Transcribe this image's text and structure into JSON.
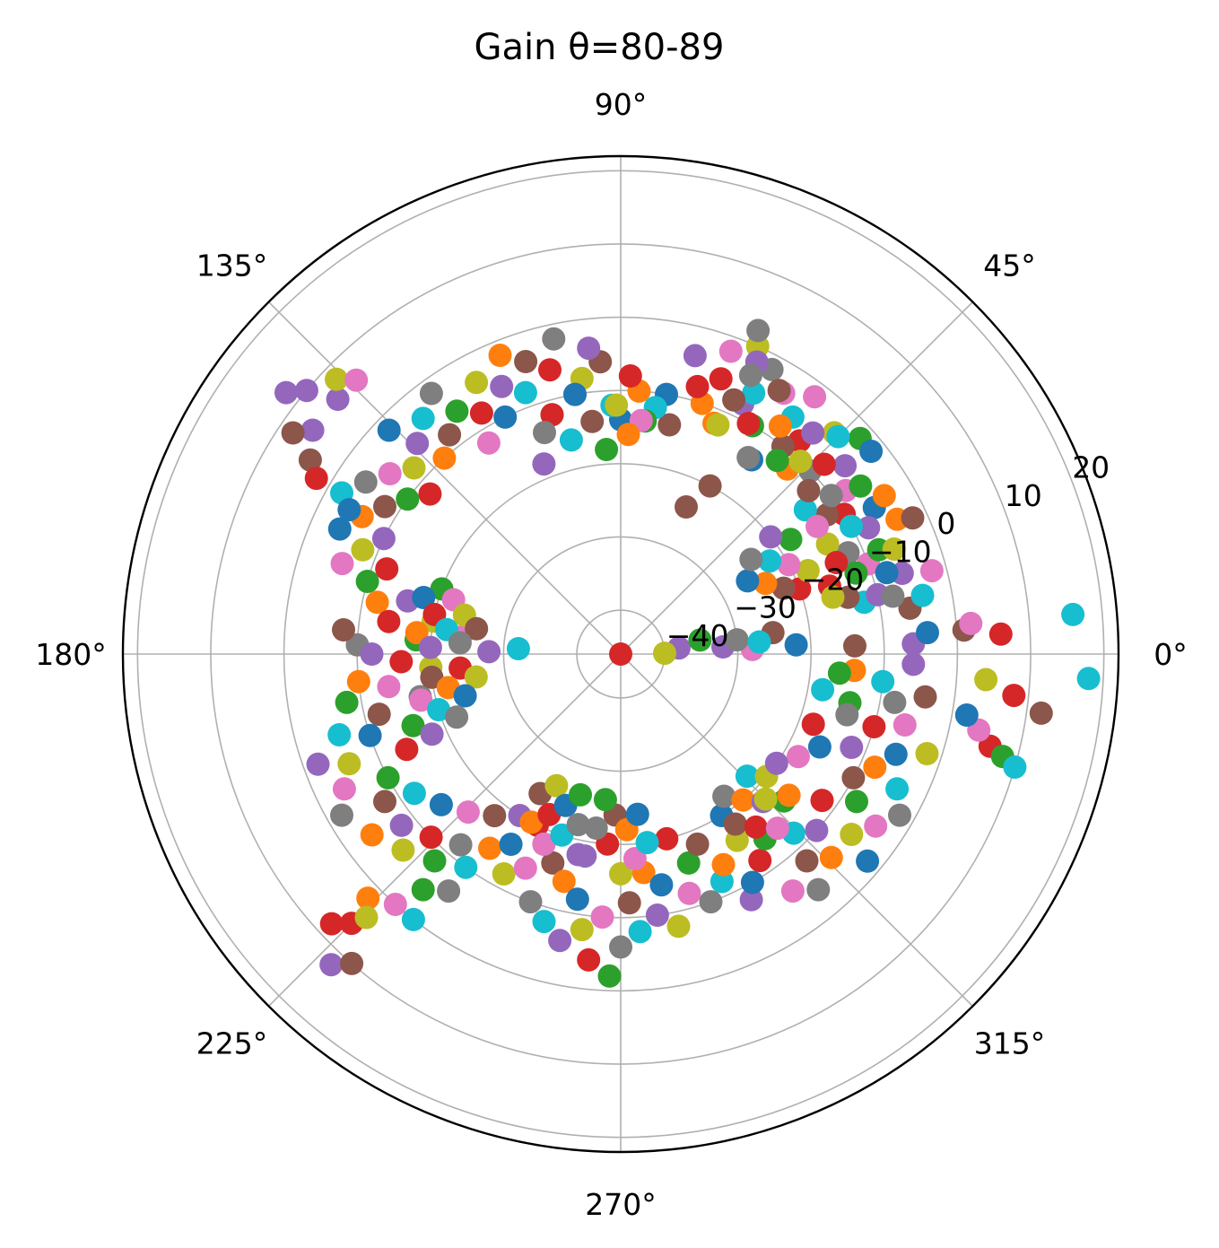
{
  "chart_data": {
    "type": "scatter",
    "projection": "polar",
    "title": "Gain θ=80-89",
    "angle_ticks": [
      "0°",
      "45°",
      "90°",
      "135°",
      "180°",
      "225°",
      "270°",
      "315°"
    ],
    "angle_tick_values_deg": [
      0,
      45,
      90,
      135,
      180,
      225,
      270,
      315
    ],
    "radial_ticks": [
      "−40",
      "−30",
      "−20",
      "−10",
      "0",
      "10",
      "20"
    ],
    "radial_tick_values": [
      -40,
      -30,
      -20,
      -10,
      0,
      10,
      20
    ],
    "rlim": [
      -46,
      22
    ],
    "grid": true,
    "legend": "none",
    "colors": [
      "#1f77b4",
      "#ff7f0e",
      "#2ca02c",
      "#d62728",
      "#9467bd",
      "#8c564b",
      "#e377c2",
      "#7f7f7f",
      "#bcbd22",
      "#17becf"
    ],
    "series_description": "approx. 600 points over many colored series; angles in degrees, radius (gain) in dB",
    "points": [
      [
        0,
        -46,
        3
      ],
      [
        4,
        -32,
        4
      ],
      [
        8,
        -25,
        5
      ],
      [
        2,
        -28,
        6
      ],
      [
        6,
        -38,
        4
      ],
      [
        10,
        -35,
        2
      ],
      [
        3,
        -22,
        0
      ],
      [
        7,
        -30,
        7
      ],
      [
        1,
        -40,
        8
      ],
      [
        5,
        -27,
        9
      ],
      [
        12,
        -12,
        9
      ],
      [
        14,
        -14,
        5
      ],
      [
        16,
        -6,
        4
      ],
      [
        18,
        -16,
        3
      ],
      [
        20,
        -10,
        6
      ],
      [
        22,
        -8,
        2
      ],
      [
        24,
        -12,
        7
      ],
      [
        26,
        -4,
        1
      ],
      [
        28,
        -14,
        8
      ],
      [
        30,
        -6,
        0
      ],
      [
        32,
        -10,
        3
      ],
      [
        34,
        -12,
        5
      ],
      [
        36,
        -8,
        6
      ],
      [
        38,
        -14,
        9
      ],
      [
        40,
        -6,
        4
      ],
      [
        42,
        -2,
        2
      ],
      [
        44,
        -10,
        7
      ],
      [
        46,
        -4,
        8
      ],
      [
        48,
        -12,
        1
      ],
      [
        50,
        -8,
        3
      ],
      [
        52,
        -10,
        5
      ],
      [
        54,
        -6,
        9
      ],
      [
        56,
        -14,
        0
      ],
      [
        58,
        -4,
        6
      ],
      [
        60,
        -10,
        2
      ],
      [
        62,
        -2,
        7
      ],
      [
        64,
        -8,
        4
      ],
      [
        66,
        0,
        8
      ],
      [
        68,
        -12,
        1
      ],
      [
        70,
        -6,
        3
      ],
      [
        9,
        -6,
        5
      ],
      [
        11,
        -4,
        9
      ],
      [
        13,
        -10,
        4
      ],
      [
        15,
        -2,
        6
      ],
      [
        17,
        -8,
        0
      ],
      [
        19,
        -12,
        2
      ],
      [
        21,
        -6,
        8
      ],
      [
        23,
        -14,
        3
      ],
      [
        25,
        -2,
        5
      ],
      [
        27,
        -8,
        4
      ],
      [
        29,
        -10,
        9
      ],
      [
        31,
        -4,
        1
      ],
      [
        33,
        -14,
        6
      ],
      [
        35,
        -6,
        2
      ],
      [
        37,
        -10,
        7
      ],
      [
        39,
        -2,
        0
      ],
      [
        41,
        -12,
        5
      ],
      [
        43,
        -8,
        3
      ],
      [
        45,
        -4,
        9
      ],
      [
        47,
        -10,
        8
      ],
      [
        49,
        -6,
        4
      ],
      [
        51,
        -12,
        2
      ],
      [
        53,
        -2,
        6
      ],
      [
        55,
        -8,
        1
      ],
      [
        57,
        -14,
        7
      ],
      [
        59,
        -4,
        5
      ],
      [
        61,
        -10,
        3
      ],
      [
        63,
        -6,
        9
      ],
      [
        65,
        -2,
        4
      ],
      [
        67,
        -12,
        8
      ],
      [
        3,
        6,
        3
      ],
      [
        4,
        1,
        5
      ],
      [
        2,
        -6,
        4
      ],
      [
        5,
        2,
        6
      ],
      [
        4,
        -4,
        0
      ],
      [
        15,
        -16,
        8
      ],
      [
        12,
        -8,
        7
      ],
      [
        66,
        -8,
        5
      ],
      [
        62,
        -20,
        5
      ],
      [
        65,
        -4,
        7
      ],
      [
        67,
        2,
        7
      ],
      [
        66,
        -24,
        5
      ],
      [
        70,
        -2,
        6
      ],
      [
        72,
        -10,
        1
      ],
      [
        74,
        -8,
        3
      ],
      [
        76,
        -4,
        4
      ],
      [
        78,
        -14,
        5
      ],
      [
        80,
        -10,
        0
      ],
      [
        82,
        -12,
        9
      ],
      [
        84,
        -14,
        2
      ],
      [
        86,
        -10,
        1
      ],
      [
        88,
        -8,
        3
      ],
      [
        90,
        -14,
        0
      ],
      [
        92,
        -12,
        9
      ],
      [
        94,
        -6,
        5
      ],
      [
        96,
        -4,
        4
      ],
      [
        98,
        -8,
        8
      ],
      [
        100,
        -10,
        6
      ],
      [
        102,
        -2,
        7
      ],
      [
        104,
        -6,
        3
      ],
      [
        106,
        -12,
        2
      ],
      [
        108,
        -4,
        5
      ],
      [
        110,
        -8,
        9
      ],
      [
        112,
        -2,
        1
      ],
      [
        114,
        -6,
        4
      ],
      [
        116,
        -10,
        0
      ],
      [
        118,
        -4,
        8
      ],
      [
        120,
        -8,
        3
      ],
      [
        122,
        -12,
        6
      ],
      [
        124,
        -6,
        2
      ],
      [
        126,
        -2,
        7
      ],
      [
        128,
        -8,
        5
      ],
      [
        130,
        -4,
        9
      ],
      [
        132,
        -10,
        1
      ],
      [
        134,
        -6,
        4
      ],
      [
        136,
        -2,
        0
      ],
      [
        138,
        -8,
        8
      ],
      [
        140,
        -12,
        3
      ],
      [
        142,
        -6,
        6
      ],
      [
        144,
        -10,
        2
      ],
      [
        146,
        -4,
        7
      ],
      [
        148,
        -8,
        5
      ],
      [
        150,
        -2,
        9
      ],
      [
        152,
        -6,
        1
      ],
      [
        154,
        -10,
        4
      ],
      [
        156,
        -4,
        0
      ],
      [
        158,
        -8,
        8
      ],
      [
        160,
        -12,
        3
      ],
      [
        162,
        -6,
        6
      ],
      [
        164,
        -10,
        2
      ],
      [
        140,
        10,
        4
      ],
      [
        142,
        12,
        4
      ],
      [
        144,
        6,
        4
      ],
      [
        146,
        8,
        5
      ],
      [
        138,
        6,
        4
      ],
      [
        148,
        4,
        5
      ],
      [
        136,
        8,
        8
      ],
      [
        134,
        6,
        6
      ],
      [
        150,
        2,
        3
      ],
      [
        152,
        -4,
        0
      ],
      [
        166,
        -16,
        4
      ],
      [
        168,
        -12,
        1
      ],
      [
        170,
        -20,
        8
      ],
      [
        172,
        -14,
        3
      ],
      [
        174,
        -24,
        6
      ],
      [
        176,
        -18,
        2
      ],
      [
        178,
        -10,
        7
      ],
      [
        179,
        -28,
        4
      ],
      [
        177,
        -32,
        9
      ],
      [
        175,
        -8,
        5
      ],
      [
        180,
        -12,
        4
      ],
      [
        182,
        -16,
        3
      ],
      [
        184,
        -20,
        8
      ],
      [
        186,
        -10,
        1
      ],
      [
        188,
        -14,
        6
      ],
      [
        190,
        -8,
        2
      ],
      [
        192,
        -18,
        7
      ],
      [
        194,
        -12,
        5
      ],
      [
        196,
        -6,
        9
      ],
      [
        198,
        -10,
        0
      ],
      [
        200,
        -2,
        4
      ],
      [
        202,
        -6,
        8
      ],
      [
        204,
        -14,
        3
      ],
      [
        206,
        -4,
        6
      ],
      [
        208,
        -10,
        2
      ],
      [
        210,
        -2,
        7
      ],
      [
        212,
        -8,
        5
      ],
      [
        214,
        -12,
        9
      ],
      [
        216,
        -4,
        1
      ],
      [
        218,
        -8,
        4
      ],
      [
        220,
        -14,
        0
      ],
      [
        222,
        -6,
        8
      ],
      [
        224,
        -10,
        3
      ],
      [
        226,
        -16,
        6
      ],
      [
        228,
        -8,
        2
      ],
      [
        230,
        -12,
        7
      ],
      [
        232,
        -18,
        5
      ],
      [
        234,
        -10,
        9
      ],
      [
        236,
        -14,
        1
      ],
      [
        238,
        -20,
        4
      ],
      [
        240,
        -16,
        0
      ],
      [
        242,
        -12,
        8
      ],
      [
        244,
        -20,
        3
      ],
      [
        246,
        -14,
        6
      ],
      [
        248,
        -18,
        2
      ],
      [
        250,
        -10,
        7
      ],
      [
        252,
        -16,
        5
      ],
      [
        254,
        -8,
        9
      ],
      [
        256,
        -14,
        1
      ],
      [
        258,
        -6,
        4
      ],
      [
        260,
        -12,
        0
      ],
      [
        262,
        -8,
        8
      ],
      [
        264,
        -4,
        3
      ],
      [
        266,
        -10,
        6
      ],
      [
        268,
        -2,
        2
      ],
      [
        270,
        -6,
        7
      ],
      [
        272,
        -12,
        5
      ],
      [
        274,
        -8,
        9
      ],
      [
        276,
        -16,
        1
      ],
      [
        278,
        -10,
        4
      ],
      [
        223,
        8,
        3
      ],
      [
        225,
        6,
        3
      ],
      [
        227,
        12,
        4
      ],
      [
        229,
        10,
        5
      ],
      [
        224,
        2,
        1
      ],
      [
        226,
        4,
        8
      ],
      [
        228,
        0,
        6
      ],
      [
        230,
        -4,
        2
      ],
      [
        232,
        0,
        9
      ],
      [
        234,
        -6,
        7
      ],
      [
        280,
        -14,
        0
      ],
      [
        282,
        -8,
        8
      ],
      [
        284,
        -20,
        3
      ],
      [
        286,
        -12,
        6
      ],
      [
        288,
        -16,
        2
      ],
      [
        290,
        -10,
        7
      ],
      [
        292,
        -18,
        5
      ],
      [
        294,
        -12,
        9
      ],
      [
        296,
        -14,
        1
      ],
      [
        298,
        -8,
        4
      ],
      [
        300,
        -10,
        0
      ],
      [
        302,
        -16,
        8
      ],
      [
        304,
        -12,
        3
      ],
      [
        306,
        -6,
        6
      ],
      [
        308,
        -14,
        2
      ],
      [
        310,
        -4,
        7
      ],
      [
        312,
        -8,
        5
      ],
      [
        314,
        -12,
        9
      ],
      [
        316,
        -6,
        1
      ],
      [
        318,
        -10,
        4
      ],
      [
        320,
        -2,
        0
      ],
      [
        322,
        -6,
        8
      ],
      [
        324,
        -12,
        3
      ],
      [
        326,
        -4,
        6
      ],
      [
        328,
        -8,
        2
      ],
      [
        330,
        -2,
        7
      ],
      [
        332,
        -10,
        5
      ],
      [
        334,
        -4,
        9
      ],
      [
        336,
        -8,
        1
      ],
      [
        338,
        -12,
        4
      ],
      [
        340,
        -6,
        0
      ],
      [
        342,
        -2,
        8
      ],
      [
        344,
        -10,
        3
      ],
      [
        346,
        -6,
        6
      ],
      [
        348,
        -14,
        2
      ],
      [
        350,
        -8,
        7
      ],
      [
        352,
        -4,
        5
      ],
      [
        354,
        -10,
        9
      ],
      [
        356,
        -14,
        1
      ],
      [
        358,
        -6,
        4
      ],
      [
        346,
        6,
        3
      ],
      [
        345,
        8,
        2
      ],
      [
        344,
        10,
        9
      ],
      [
        348,
        4,
        6
      ],
      [
        350,
        2,
        0
      ],
      [
        352,
        12,
        5
      ],
      [
        354,
        8,
        3
      ],
      [
        356,
        4,
        8
      ],
      [
        5,
        16,
        9
      ],
      [
        357,
        18,
        9
      ],
      [
        302,
        -20,
        0
      ],
      [
        304,
        -18,
        5
      ],
      [
        306,
        -22,
        7
      ],
      [
        308,
        -16,
        3
      ],
      [
        310,
        -20,
        1
      ],
      [
        312,
        -14,
        6
      ],
      [
        314,
        -18,
        4
      ],
      [
        316,
        -22,
        9
      ],
      [
        318,
        -16,
        2
      ],
      [
        320,
        -20,
        8
      ],
      [
        2,
        -14,
        5
      ],
      [
        355,
        -16,
        2
      ],
      [
        350,
        -18,
        9
      ],
      [
        345,
        -14,
        7
      ],
      [
        340,
        -18,
        3
      ],
      [
        335,
        -16,
        0
      ],
      [
        330,
        -18,
        6
      ],
      [
        325,
        -20,
        4
      ],
      [
        320,
        -16,
        1
      ],
      [
        315,
        -18,
        8
      ],
      [
        85,
        -14,
        6
      ],
      [
        88,
        -16,
        1
      ],
      [
        91,
        -12,
        8
      ],
      [
        94,
        -18,
        2
      ],
      [
        97,
        -14,
        5
      ],
      [
        100,
        -10,
        0
      ],
      [
        103,
        -16,
        9
      ],
      [
        106,
        -12,
        3
      ],
      [
        109,
        -14,
        7
      ],
      [
        112,
        -18,
        4
      ],
      [
        160,
        -20,
        2
      ],
      [
        162,
        -22,
        6
      ],
      [
        164,
        -18,
        0
      ],
      [
        166,
        -24,
        8
      ],
      [
        168,
        -20,
        3
      ],
      [
        170,
        -26,
        5
      ],
      [
        172,
        -22,
        9
      ],
      [
        174,
        -18,
        1
      ],
      [
        176,
        -24,
        7
      ],
      [
        178,
        -20,
        4
      ],
      [
        185,
        -24,
        3
      ],
      [
        187,
        -20,
        5
      ],
      [
        189,
        -26,
        8
      ],
      [
        191,
        -22,
        1
      ],
      [
        193,
        -18,
        6
      ],
      [
        195,
        -24,
        0
      ],
      [
        197,
        -20,
        9
      ],
      [
        199,
        -16,
        2
      ],
      [
        201,
        -22,
        7
      ],
      [
        203,
        -18,
        4
      ],
      [
        240,
        -24,
        5
      ],
      [
        242,
        -20,
        1
      ],
      [
        244,
        -26,
        8
      ],
      [
        246,
        -22,
        3
      ],
      [
        248,
        -18,
        6
      ],
      [
        250,
        -24,
        0
      ],
      [
        252,
        -20,
        9
      ],
      [
        254,
        -26,
        2
      ],
      [
        256,
        -22,
        7
      ],
      [
        258,
        -18,
        4
      ],
      [
        266,
        -20,
        3
      ],
      [
        268,
        -24,
        5
      ],
      [
        270,
        -16,
        8
      ],
      [
        272,
        -22,
        1
      ],
      [
        274,
        -18,
        6
      ],
      [
        276,
        -24,
        0
      ],
      [
        278,
        -20,
        9
      ],
      [
        264,
        -26,
        2
      ],
      [
        262,
        -22,
        7
      ],
      [
        260,
        -18,
        4
      ],
      [
        20,
        -20,
        3
      ],
      [
        22,
        -22,
        5
      ],
      [
        24,
        -18,
        8
      ],
      [
        26,
        -24,
        1
      ],
      [
        28,
        -20,
        6
      ],
      [
        30,
        -26,
        0
      ],
      [
        32,
        -22,
        9
      ],
      [
        34,
        -18,
        2
      ],
      [
        36,
        -24,
        7
      ],
      [
        38,
        -20,
        4
      ]
    ]
  }
}
